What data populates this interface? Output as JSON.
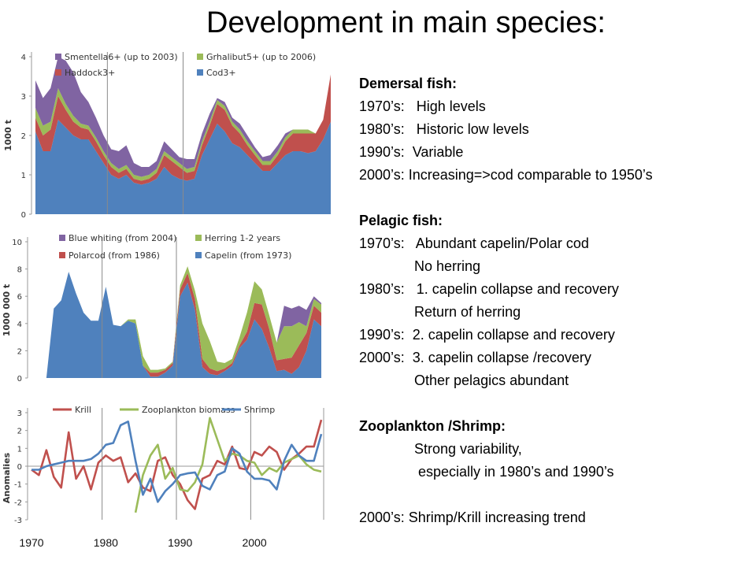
{
  "title": "Development in main species:",
  "text": {
    "demersal_head": "Demersal fish:",
    "d1": "1970’s:   High levels",
    "d2": "1980’s:   Historic low levels",
    "d3": "1990’s:  Variable",
    "d4": "2000’s: Increasing=>cod comparable to 1950’s",
    "pelagic_head": "Pelagic fish:",
    "p1": "1970’s:   Abundant capelin/Polar cod",
    "p2": "              No herring",
    "p3": "1980’s:   1. capelin collapse and recovery",
    "p4": "              Return of herring",
    "p5": "1990’s:  2. capelin collapse and recovery",
    "p6": "2000’s:  3. capelin collapse /recovery",
    "p7": "              Other pelagics abundant",
    "zoo_head": "Zooplankton /Shrimp:",
    "z1": "              Strong variability,",
    "z2": "               especially in 1980’s and 1990’s",
    "z3": "2000’s: Shrimp/Krill increasing trend"
  },
  "chart_data": [
    {
      "type": "area",
      "stacked": true,
      "x": [
        1970,
        1971,
        1972,
        1973,
        1974,
        1975,
        1976,
        1977,
        1978,
        1979,
        1980,
        1981,
        1982,
        1983,
        1984,
        1985,
        1986,
        1987,
        1988,
        1989,
        1990,
        1991,
        1992,
        1993,
        1994,
        1995,
        1996,
        1997,
        1998,
        1999,
        2000,
        2001,
        2002,
        2003,
        2004,
        2005,
        2006,
        2007,
        2008,
        2009
      ],
      "ylabel": "1000 t",
      "ylim": [
        0,
        4
      ],
      "yticks": [
        0,
        1,
        2,
        3,
        4
      ],
      "grid": false,
      "legend": "top",
      "series": [
        {
          "name": "Cod3+",
          "color": "#4f81bd",
          "values": [
            2.1,
            1.6,
            1.6,
            2.4,
            2.2,
            2.0,
            1.9,
            1.9,
            1.6,
            1.3,
            1.0,
            0.9,
            1.0,
            0.8,
            0.75,
            0.8,
            0.9,
            1.2,
            1.0,
            0.9,
            0.85,
            0.9,
            1.5,
            1.9,
            2.3,
            2.1,
            1.8,
            1.7,
            1.5,
            1.3,
            1.1,
            1.1,
            1.3,
            1.5,
            1.6,
            1.6,
            1.55,
            1.6,
            1.9,
            2.35
          ]
        },
        {
          "name": "Haddock3+",
          "color": "#c0504d",
          "values": [
            0.35,
            0.4,
            0.55,
            0.6,
            0.45,
            0.35,
            0.3,
            0.25,
            0.25,
            0.2,
            0.2,
            0.15,
            0.15,
            0.1,
            0.1,
            0.1,
            0.15,
            0.3,
            0.35,
            0.3,
            0.2,
            0.2,
            0.25,
            0.35,
            0.5,
            0.55,
            0.45,
            0.35,
            0.25,
            0.2,
            0.15,
            0.15,
            0.2,
            0.35,
            0.45,
            0.45,
            0.5,
            0.45,
            0.5,
            1.2
          ]
        },
        {
          "name": "Grhalibut5+ (up to 2006)",
          "color": "#9bbb59",
          "values": [
            0.25,
            0.25,
            0.2,
            0.2,
            0.15,
            0.15,
            0.1,
            0.1,
            0.1,
            0.1,
            0.1,
            0.1,
            0.1,
            0.1,
            0.1,
            0.1,
            0.1,
            0.1,
            0.1,
            0.1,
            0.1,
            0.1,
            0.1,
            0.1,
            0.1,
            0.1,
            0.1,
            0.1,
            0.1,
            0.1,
            0.1,
            0.1,
            0.1,
            0.1,
            0.1,
            0.1,
            0.1,
            0,
            0,
            0
          ]
        },
        {
          "name": "Smentella6+ (up to 2003)",
          "color": "#8064a2",
          "values": [
            0.7,
            0.7,
            0.85,
            0.8,
            1.1,
            1.1,
            0.8,
            0.6,
            0.5,
            0.4,
            0.35,
            0.45,
            0.5,
            0.3,
            0.25,
            0.2,
            0.2,
            0.25,
            0.2,
            0.15,
            0.25,
            0.2,
            0.2,
            0.2,
            0.05,
            0.1,
            0.1,
            0.15,
            0.15,
            0.1,
            0.1,
            0.15,
            0.15,
            0.1,
            0,
            0,
            0,
            0,
            0,
            0
          ]
        }
      ]
    },
    {
      "type": "area",
      "stacked": true,
      "x": [
        1970,
        1971,
        1972,
        1973,
        1974,
        1975,
        1976,
        1977,
        1978,
        1979,
        1980,
        1981,
        1982,
        1983,
        1984,
        1985,
        1986,
        1987,
        1988,
        1989,
        1990,
        1991,
        1992,
        1993,
        1994,
        1995,
        1996,
        1997,
        1998,
        1999,
        2000,
        2001,
        2002,
        2003,
        2004,
        2005,
        2006,
        2007,
        2008,
        2009
      ],
      "ylabel": "1000 000 t",
      "ylim": [
        0,
        10
      ],
      "yticks": [
        0,
        2,
        4,
        6,
        8,
        10
      ],
      "grid": false,
      "legend": "top",
      "series": [
        {
          "name": "Capelin (from 1973)",
          "color": "#4f81bd",
          "values": [
            0,
            0,
            0,
            5.1,
            5.7,
            7.8,
            6.2,
            4.8,
            4.2,
            4.2,
            6.7,
            3.9,
            3.8,
            4.2,
            4.0,
            0.9,
            0.1,
            0.1,
            0.4,
            0.9,
            6.0,
            7.0,
            5.0,
            0.8,
            0.3,
            0.2,
            0.5,
            0.9,
            2.2,
            2.8,
            4.3,
            3.6,
            2.2,
            0.5,
            0.6,
            0.3,
            0.8,
            2.0,
            4.3,
            3.8
          ]
        },
        {
          "name": "Polarcod (from 1986)",
          "color": "#c0504d",
          "values": [
            0,
            0,
            0,
            0,
            0,
            0,
            0,
            0,
            0,
            0,
            0,
            0,
            0,
            0,
            0,
            0,
            0.3,
            0.3,
            0.2,
            0.2,
            0.5,
            0.7,
            0.8,
            0.6,
            0.4,
            0.3,
            0.2,
            0.2,
            0.2,
            0.6,
            1.2,
            1.8,
            1.4,
            0.8,
            0.8,
            1.2,
            1.6,
            1.3,
            1.0,
            1.0
          ]
        },
        {
          "name": "Herring 1-2 years",
          "color": "#9bbb59",
          "values": [
            0,
            0,
            0,
            0,
            0,
            0,
            0,
            0,
            0,
            0,
            0,
            0,
            0,
            0.1,
            0.3,
            0.7,
            0.2,
            0.2,
            0.1,
            0.1,
            0.3,
            0.5,
            0.6,
            2.6,
            2.0,
            0.7,
            0.4,
            0.3,
            0.6,
            1.4,
            1.6,
            1.1,
            1.0,
            1.3,
            2.4,
            2.3,
            1.7,
            0.5,
            0.5,
            0.6
          ]
        },
        {
          "name": "Blue whiting (from 2004)",
          "color": "#8064a2",
          "values": [
            0,
            0,
            0,
            0,
            0,
            0,
            0,
            0,
            0,
            0,
            0,
            0,
            0,
            0,
            0,
            0,
            0,
            0,
            0,
            0,
            0,
            0,
            0,
            0,
            0,
            0,
            0,
            0,
            0,
            0,
            0,
            0,
            0,
            0,
            1.5,
            1.3,
            1.2,
            1.2,
            0.2,
            0.1
          ]
        }
      ]
    },
    {
      "type": "line",
      "x": [
        1970,
        1971,
        1972,
        1973,
        1974,
        1975,
        1976,
        1977,
        1978,
        1979,
        1980,
        1981,
        1982,
        1983,
        1984,
        1985,
        1986,
        1987,
        1988,
        1989,
        1990,
        1991,
        1992,
        1993,
        1994,
        1995,
        1996,
        1997,
        1998,
        1999,
        2000,
        2001,
        2002,
        2003,
        2004,
        2005,
        2006,
        2007,
        2008,
        2009
      ],
      "ylabel": "Anomalies",
      "ylim": [
        -3,
        3
      ],
      "yticks": [
        -3,
        -2,
        -1,
        0,
        1,
        2,
        3
      ],
      "xticks": [
        1970,
        1980,
        1990,
        2000
      ],
      "grid": false,
      "legend": "top",
      "series": [
        {
          "name": "Krill",
          "color": "#c0504d",
          "values": [
            -0.2,
            -0.5,
            0.9,
            -0.6,
            -1.2,
            1.9,
            -0.7,
            0.0,
            -1.3,
            0.2,
            0.6,
            0.3,
            0.5,
            -0.9,
            -0.4,
            -1.2,
            -1.4,
            0.3,
            0.5,
            -0.5,
            -1.0,
            -1.9,
            -2.4,
            -0.7,
            -0.5,
            0.3,
            0.1,
            1.1,
            -0.1,
            -0.2,
            0.8,
            0.6,
            1.1,
            0.8,
            -0.2,
            0.4,
            0.7,
            1.1,
            1.1,
            2.6
          ]
        },
        {
          "name": "Zooplankton biomass",
          "color": "#9bbb59",
          "values": [
            null,
            null,
            null,
            null,
            null,
            null,
            null,
            null,
            null,
            null,
            null,
            null,
            null,
            null,
            -2.6,
            -0.5,
            0.6,
            1.2,
            -0.7,
            -0.1,
            -1.3,
            -1.4,
            -0.9,
            0.1,
            2.7,
            1.5,
            0.3,
            0.7,
            0.6,
            0.3,
            0.2,
            -0.5,
            -0.1,
            -0.3,
            0.2,
            0.4,
            0.6,
            0.1,
            -0.2,
            -0.3
          ]
        },
        {
          "name": "Shrimp",
          "color": "#4f81bd",
          "values": [
            -0.2,
            -0.2,
            0.0,
            0.1,
            0.2,
            0.3,
            0.3,
            0.3,
            0.4,
            0.7,
            1.2,
            1.3,
            2.3,
            2.5,
            0.3,
            -1.6,
            -0.7,
            -2.0,
            -1.4,
            -1.0,
            -0.5,
            -0.4,
            -0.35,
            -1.1,
            -1.3,
            -0.5,
            -0.3,
            1.0,
            0.7,
            -0.3,
            -0.7,
            -0.7,
            -0.8,
            -1.3,
            0.3,
            1.2,
            0.6,
            0.3,
            0.3,
            1.8
          ]
        }
      ]
    }
  ]
}
